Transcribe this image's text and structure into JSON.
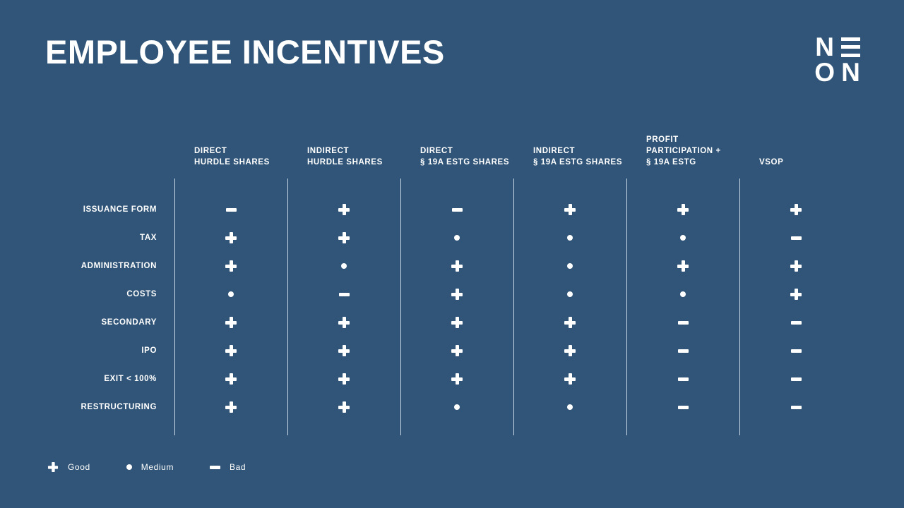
{
  "colors": {
    "background": "#305578",
    "foreground": "#ffffff",
    "divider_line": "#c9dbe4"
  },
  "slide": {
    "title": "EMPLOYEE INCENTIVES"
  },
  "logo": {
    "brand": "NEON",
    "top_left_letter": "N",
    "e_icon": "three-horizontal-bars",
    "bottom_left_letter": "O",
    "bottom_right_letter": "N"
  },
  "table": {
    "columns": [
      {
        "lines": [
          "DIRECT",
          "HURDLE SHARES"
        ]
      },
      {
        "lines": [
          "INDIRECT",
          "HURDLE SHARES"
        ]
      },
      {
        "lines": [
          "DIRECT",
          "§ 19A ESTG SHARES"
        ]
      },
      {
        "lines": [
          "INDIRECT",
          "§ 19A ESTG SHARES"
        ]
      },
      {
        "lines": [
          "PROFIT",
          "PARTICIPATION +",
          "§ 19A ESTG"
        ]
      },
      {
        "lines": [
          "VSOP"
        ]
      }
    ],
    "rows": [
      {
        "label": "ISSUANCE FORM",
        "values": [
          "minus",
          "plus",
          "minus",
          "plus",
          "plus",
          "plus"
        ]
      },
      {
        "label": "TAX",
        "values": [
          "plus",
          "plus",
          "dot",
          "dot",
          "dot",
          "minus"
        ]
      },
      {
        "label": "ADMINISTRATION",
        "values": [
          "plus",
          "dot",
          "plus",
          "dot",
          "plus",
          "plus"
        ]
      },
      {
        "label": "COSTS",
        "values": [
          "dot",
          "minus",
          "plus",
          "dot",
          "dot",
          "plus"
        ]
      },
      {
        "label": "SECONDARY",
        "values": [
          "plus",
          "plus",
          "plus",
          "plus",
          "minus",
          "minus"
        ]
      },
      {
        "label": "IPO",
        "values": [
          "plus",
          "plus",
          "plus",
          "plus",
          "minus",
          "minus"
        ]
      },
      {
        "label": "EXIT < 100%",
        "values": [
          "plus",
          "plus",
          "plus",
          "plus",
          "minus",
          "minus"
        ]
      },
      {
        "label": "RESTRUCTURING",
        "values": [
          "plus",
          "plus",
          "dot",
          "dot",
          "minus",
          "minus"
        ]
      }
    ]
  },
  "legend": [
    {
      "symbol": "plus",
      "label": "Good"
    },
    {
      "symbol": "dot",
      "label": "Medium"
    },
    {
      "symbol": "minus",
      "label": "Bad"
    }
  ]
}
